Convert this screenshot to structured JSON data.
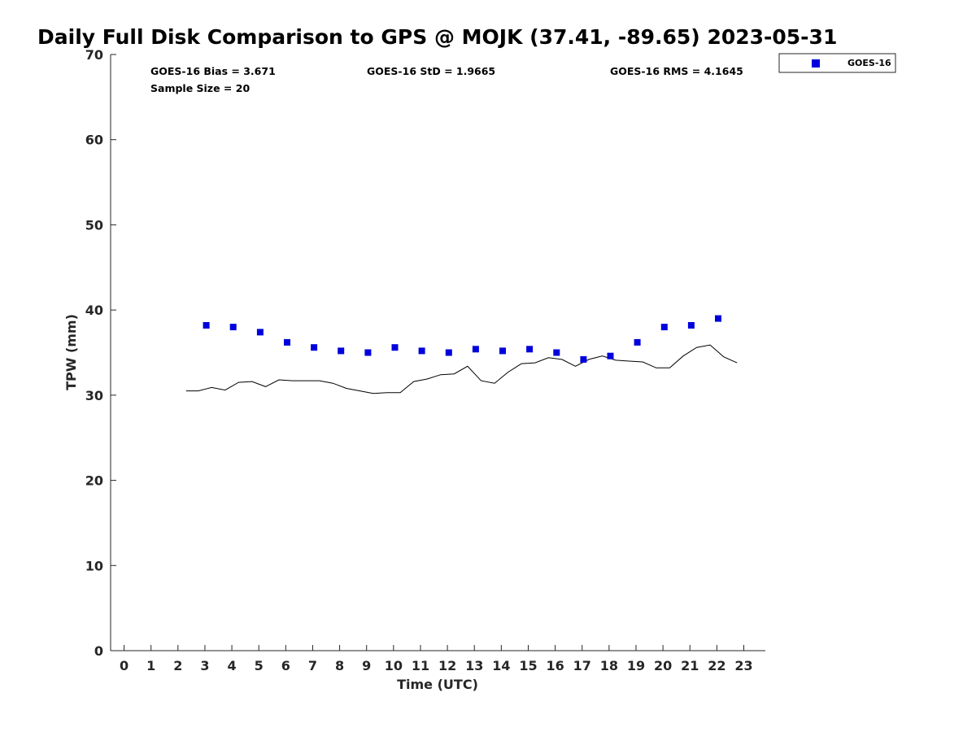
{
  "chart_data": {
    "type": "scatter",
    "title": "Daily Full Disk Comparison to GPS @ MOJK (37.41, -89.65) 2023-05-31",
    "xlabel": "Time (UTC)",
    "ylabel": "TPW (mm)",
    "xlim": [
      -0.5,
      23.8
    ],
    "ylim": [
      0,
      70
    ],
    "x_ticks": [
      "0",
      "1",
      "2",
      "3",
      "4",
      "5",
      "6",
      "7",
      "8",
      "9",
      "10",
      "11",
      "12",
      "13",
      "14",
      "15",
      "16",
      "17",
      "18",
      "19",
      "20",
      "21",
      "22",
      "23"
    ],
    "y_ticks": [
      "0",
      "10",
      "20",
      "30",
      "40",
      "50",
      "60",
      "70"
    ],
    "grid": false,
    "legend_position": "top-right, outside plot",
    "stats": {
      "bias": "GOES-16 Bias = 3.671",
      "std": "GOES-16 StD = 1.9665",
      "rms": "GOES-16 RMS = 4.1645",
      "sample_size": "Sample Size = 20"
    },
    "series": [
      {
        "name": "GOES-16",
        "marker": "square",
        "color": "#0000dd",
        "x": [
          3.05,
          4.05,
          5.05,
          6.05,
          7.05,
          8.05,
          9.05,
          10.05,
          11.05,
          12.05,
          13.05,
          14.05,
          15.05,
          16.05,
          17.05,
          18.05,
          19.05,
          20.05,
          21.05,
          22.05
        ],
        "y": [
          38.2,
          38.0,
          37.4,
          36.2,
          35.6,
          35.2,
          35.0,
          35.6,
          35.2,
          35.0,
          35.4,
          35.2,
          35.4,
          35.0,
          34.2,
          34.6,
          36.2,
          38.0,
          38.2,
          39.0
        ]
      },
      {
        "marker": "none",
        "color": "#000000",
        "x": [
          2.3,
          2.75,
          3.25,
          3.75,
          4.25,
          4.75,
          5.25,
          5.75,
          6.25,
          6.75,
          7.25,
          7.75,
          8.25,
          8.75,
          9.25,
          9.75,
          10.25,
          10.75,
          11.25,
          11.75,
          12.25,
          12.75,
          13.25,
          13.75,
          14.25,
          14.75,
          15.25,
          15.75,
          16.25,
          16.75,
          17.25,
          17.75,
          18.25,
          18.75,
          19.25,
          19.75,
          20.25,
          20.75,
          21.25,
          21.75,
          22.25,
          22.75
        ],
        "y": [
          30.5,
          30.5,
          30.9,
          30.6,
          31.5,
          31.6,
          31.0,
          31.8,
          31.7,
          31.7,
          31.7,
          31.4,
          30.8,
          30.5,
          30.2,
          30.3,
          30.3,
          31.6,
          31.9,
          32.4,
          32.5,
          33.4,
          31.7,
          31.4,
          32.7,
          33.7,
          33.8,
          34.4,
          34.2,
          33.4,
          34.2,
          34.6,
          34.1,
          34.0,
          33.9,
          33.2,
          33.2,
          34.6,
          35.6,
          35.9,
          34.5,
          33.8
        ]
      }
    ]
  }
}
